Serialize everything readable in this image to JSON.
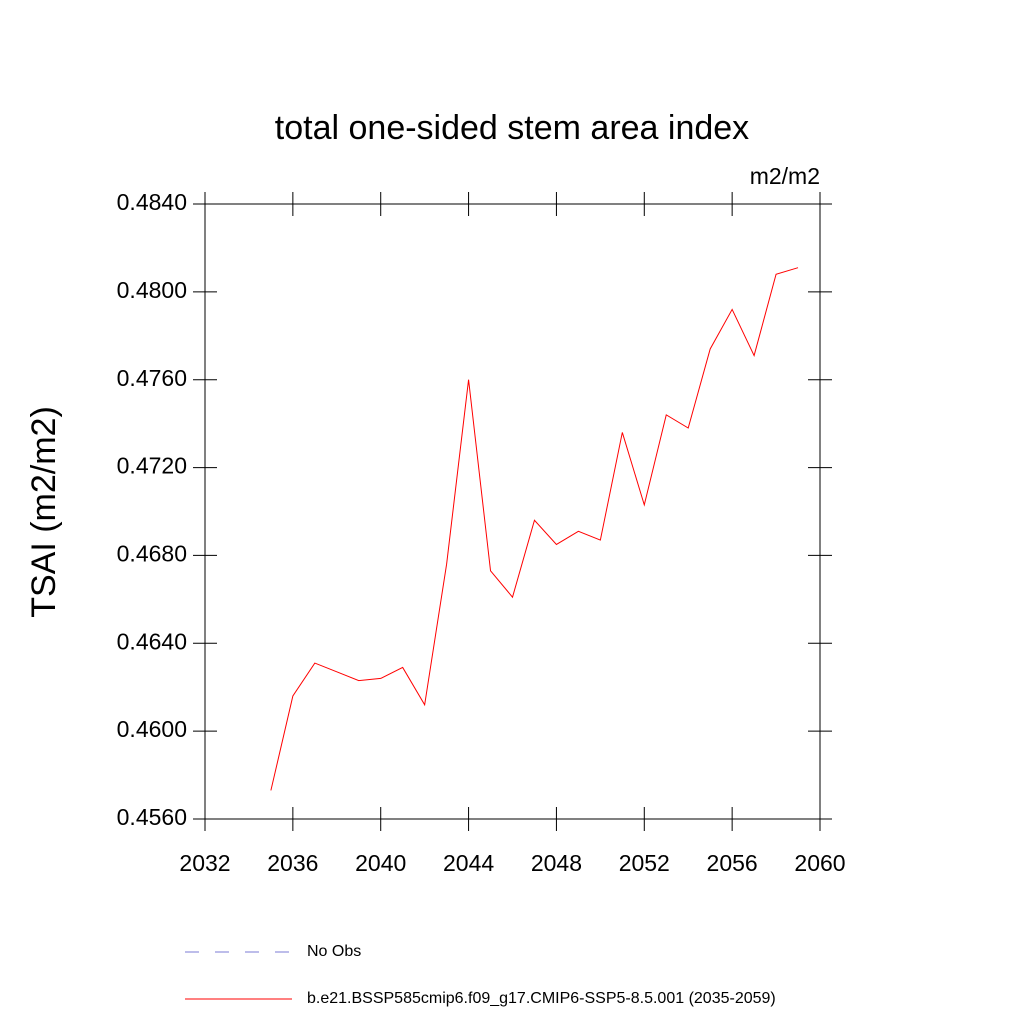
{
  "chart_data": {
    "type": "line",
    "title": "total one-sided stem area index",
    "units": "m2/m2",
    "y_label": "TSAI  (m2/m2)",
    "x": [
      2035,
      2036,
      2037,
      2038,
      2039,
      2040,
      2041,
      2042,
      2043,
      2044,
      2045,
      2046,
      2047,
      2048,
      2049,
      2050,
      2051,
      2052,
      2053,
      2054,
      2055,
      2056,
      2057,
      2058,
      2059
    ],
    "series": [
      {
        "name": "b.e21.BSSP585cmip6.f09_g17.CMIP6-SSP5-8.5.001 (2035-2059)",
        "color": "#ff0000",
        "values": [
          0.4573,
          0.4616,
          0.4631,
          0.4627,
          0.4623,
          0.4624,
          0.4629,
          0.4612,
          0.4676,
          0.476,
          0.4673,
          0.4661,
          0.4696,
          0.4685,
          0.4691,
          0.4687,
          0.4736,
          0.4703,
          0.4744,
          0.4738,
          0.4774,
          0.4792,
          0.4771,
          0.4808,
          0.4811
        ]
      }
    ],
    "extra_legend": [
      {
        "name": "No Obs",
        "color": "#7b7bd6",
        "dashed": true
      }
    ],
    "xlim": [
      2032,
      2060
    ],
    "xticks": [
      2032,
      2036,
      2040,
      2044,
      2048,
      2052,
      2056,
      2060
    ],
    "ylim": [
      0.456,
      0.484
    ],
    "yticks": [
      {
        "value": 0.456,
        "label": "0.4560"
      },
      {
        "value": 0.46,
        "label": "0.4600"
      },
      {
        "value": 0.464,
        "label": "0.4640"
      },
      {
        "value": 0.468,
        "label": "0.4680"
      },
      {
        "value": 0.472,
        "label": "0.4720"
      },
      {
        "value": 0.476,
        "label": "0.4760"
      },
      {
        "value": 0.48,
        "label": "0.4800"
      },
      {
        "value": 0.484,
        "label": "0.4840"
      }
    ],
    "grid": false
  }
}
